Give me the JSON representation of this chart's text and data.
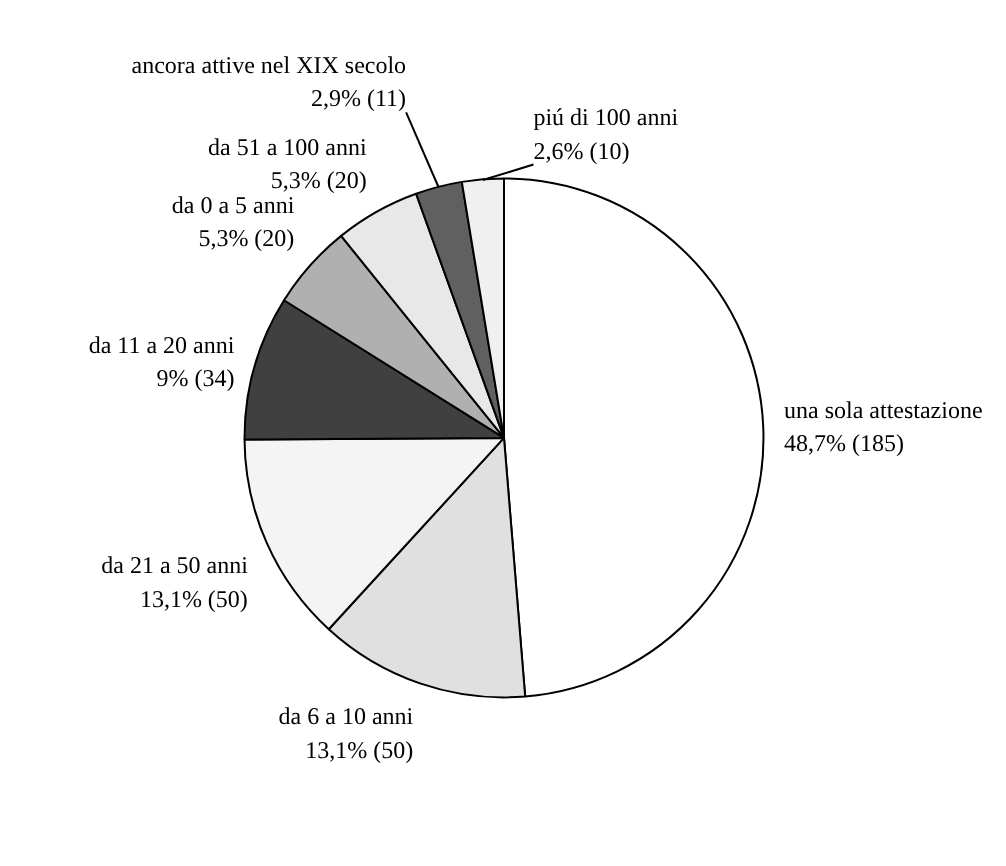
{
  "chart_data": {
    "type": "pie",
    "categories": [
      "una sola attestazione",
      "da 6 a 10 anni",
      "da 21 a 50 anni",
      "da 11 a 20 anni",
      "da 0 a 5 anni",
      "da 51 a 100 anni",
      "ancora attive nel XIX secolo",
      "piú di 100 anni"
    ],
    "values": [
      48.7,
      13.1,
      13.1,
      9,
      5.3,
      5.3,
      2.9,
      2.6
    ],
    "value_labels": [
      "48,7% (185)",
      "13,1% (50)",
      "13,1% (50)",
      "9% (34)",
      "5,3% (20)",
      "5,3% (20)",
      "2,9% (11)",
      "2,6% (10)"
    ],
    "colors": [
      "#ffffff",
      "#e0e0e0",
      "#f4f4f4",
      "#404040",
      "#b0b0b0",
      "#e8e8e8",
      "#606060",
      "#f0f0f0"
    ]
  }
}
